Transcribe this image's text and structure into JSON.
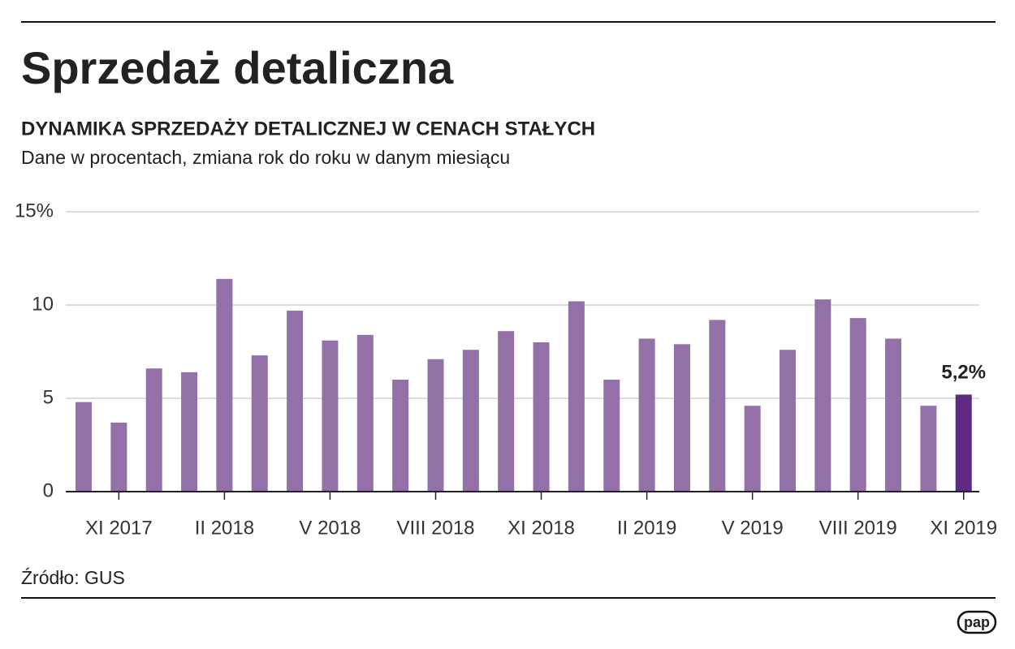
{
  "chart_data": {
    "type": "bar",
    "title": "Sprzedaż detaliczna",
    "subtitle": "DYNAMIKA SPRZEDAŻY DETALICZNEJ W CENACH STAŁYCH",
    "description": "Dane w procentach, zmiana rok do roku w danym miesiącu",
    "source": "Źródło: GUS",
    "categories": [
      null,
      "XI 2017",
      null,
      null,
      "II 2018",
      null,
      null,
      "V 2018",
      null,
      null,
      "VIII 2018",
      null,
      null,
      "XI 2018",
      null,
      null,
      "II 2019",
      null,
      null,
      "V 2019",
      null,
      null,
      "VIII 2019",
      null,
      null,
      "XI 2019"
    ],
    "values": [
      4.8,
      3.7,
      6.6,
      6.4,
      11.4,
      7.3,
      9.7,
      8.1,
      8.4,
      6.0,
      7.1,
      7.6,
      8.6,
      8.0,
      10.2,
      6.0,
      8.2,
      7.9,
      9.2,
      4.6,
      7.6,
      10.3,
      9.3,
      8.2,
      4.6,
      5.2
    ],
    "value_labels": [
      null,
      null,
      null,
      null,
      null,
      null,
      null,
      null,
      null,
      null,
      null,
      null,
      null,
      null,
      null,
      null,
      null,
      null,
      null,
      null,
      null,
      null,
      null,
      null,
      null,
      "5,2%"
    ],
    "colors": [
      "#9370a8",
      "#9370a8",
      "#9370a8",
      "#9370a8",
      "#9370a8",
      "#9370a8",
      "#9370a8",
      "#9370a8",
      "#9370a8",
      "#9370a8",
      "#9370a8",
      "#9370a8",
      "#9370a8",
      "#9370a8",
      "#9370a8",
      "#9370a8",
      "#9370a8",
      "#9370a8",
      "#9370a8",
      "#9370a8",
      "#9370a8",
      "#9370a8",
      "#9370a8",
      "#9370a8",
      "#9370a8",
      "#5e2a82"
    ],
    "ylim": [
      0,
      15
    ],
    "yticks": [
      0,
      5,
      10,
      {
        "value": 15,
        "label": "15%"
      }
    ],
    "grid": true
  },
  "logo": "pap"
}
